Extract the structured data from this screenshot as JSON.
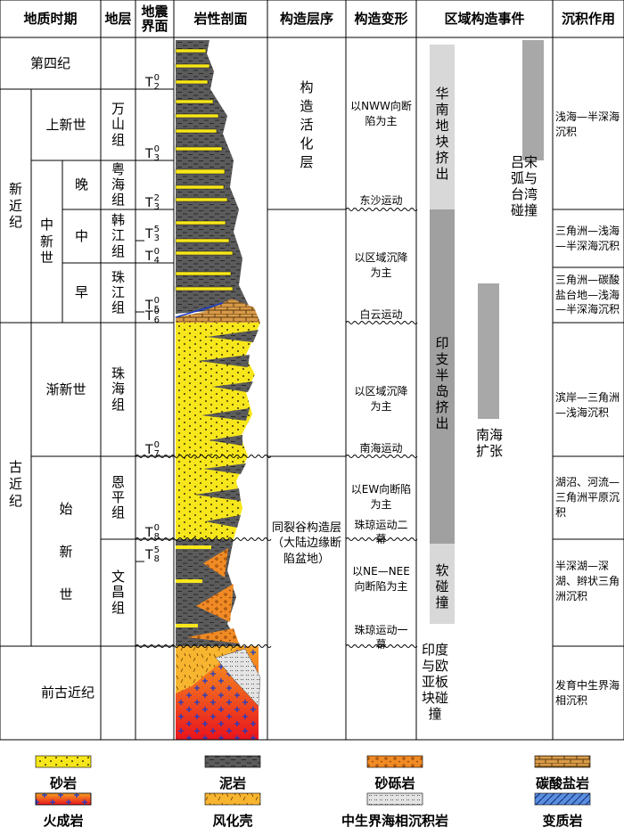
{
  "header": {
    "columns": [
      "地质时期",
      "地层",
      "地震界面",
      "岩性剖面",
      "构造层序",
      "构造变形",
      "区域构造事件",
      "沉积作用"
    ]
  },
  "periods": {
    "eras": [
      "第四纪",
      "新近纪",
      "古近纪",
      "前古近纪"
    ],
    "epochs": [
      "上新世",
      "中新世",
      "渐新世",
      "始新世"
    ],
    "subepochs": [
      "晚",
      "中",
      "早"
    ]
  },
  "formations": [
    "万山组",
    "粤海组",
    "韩江组",
    "珠江组",
    "珠海组",
    "恩平组",
    "文昌组"
  ],
  "seismic": [
    {
      "base": "T",
      "sub": "2",
      "sup": "0"
    },
    {
      "base": "T",
      "sub": "3",
      "sup": "0"
    },
    {
      "base": "T",
      "sub": "3",
      "sup": "2"
    },
    {
      "base": "T",
      "sub": "3",
      "sup": "5"
    },
    {
      "base": "T",
      "sub": "4",
      "sup": "0"
    },
    {
      "base": "T",
      "sub": "5",
      "sup": "0"
    },
    {
      "base": "T",
      "sub": "6",
      "sup": "0"
    },
    {
      "base": "T",
      "sub": "7",
      "sup": "0"
    },
    {
      "base": "T",
      "sub": "8",
      "sup": "0"
    },
    {
      "base": "T",
      "sub": "8",
      "sup": "5"
    }
  ],
  "sequences": [
    "构造活化层",
    "同裂谷构造层（大陆边缘断陷盆地）"
  ],
  "deformation": [
    "以NWW向断陷为主",
    "东沙运动",
    "以区域沉降为主",
    "白云运动",
    "以区域沉降为主",
    "南海运动",
    "以EW向断陷为主",
    "珠琼运动二幕",
    "以NE—NEE向断陷为主",
    "珠琼运动一幕"
  ],
  "events": [
    "华南地块挤出",
    "印支半岛挤出",
    "软碰撞",
    "印度与欧亚板块碰撞",
    "南海扩张",
    "吕宋弧与台湾碰撞"
  ],
  "deposition": [
    "浅海—半深海沉积",
    "三角洲—浅海—半深海沉积",
    "三角洲—碳酸盐台地—浅海—半深海沉积",
    "滨岸—三角洲—浅海沉积",
    "湖沼、河流—三角洲平原沉积",
    "半深湖—深湖、辫状三角洲沉积",
    "发育中生界海相沉积"
  ],
  "legend": [
    "砂岩",
    "泥岩",
    "砂砾岩",
    "碳酸盐岩",
    "火成岩",
    "风化壳",
    "中生界海相沉积岩",
    "变质岩"
  ]
}
